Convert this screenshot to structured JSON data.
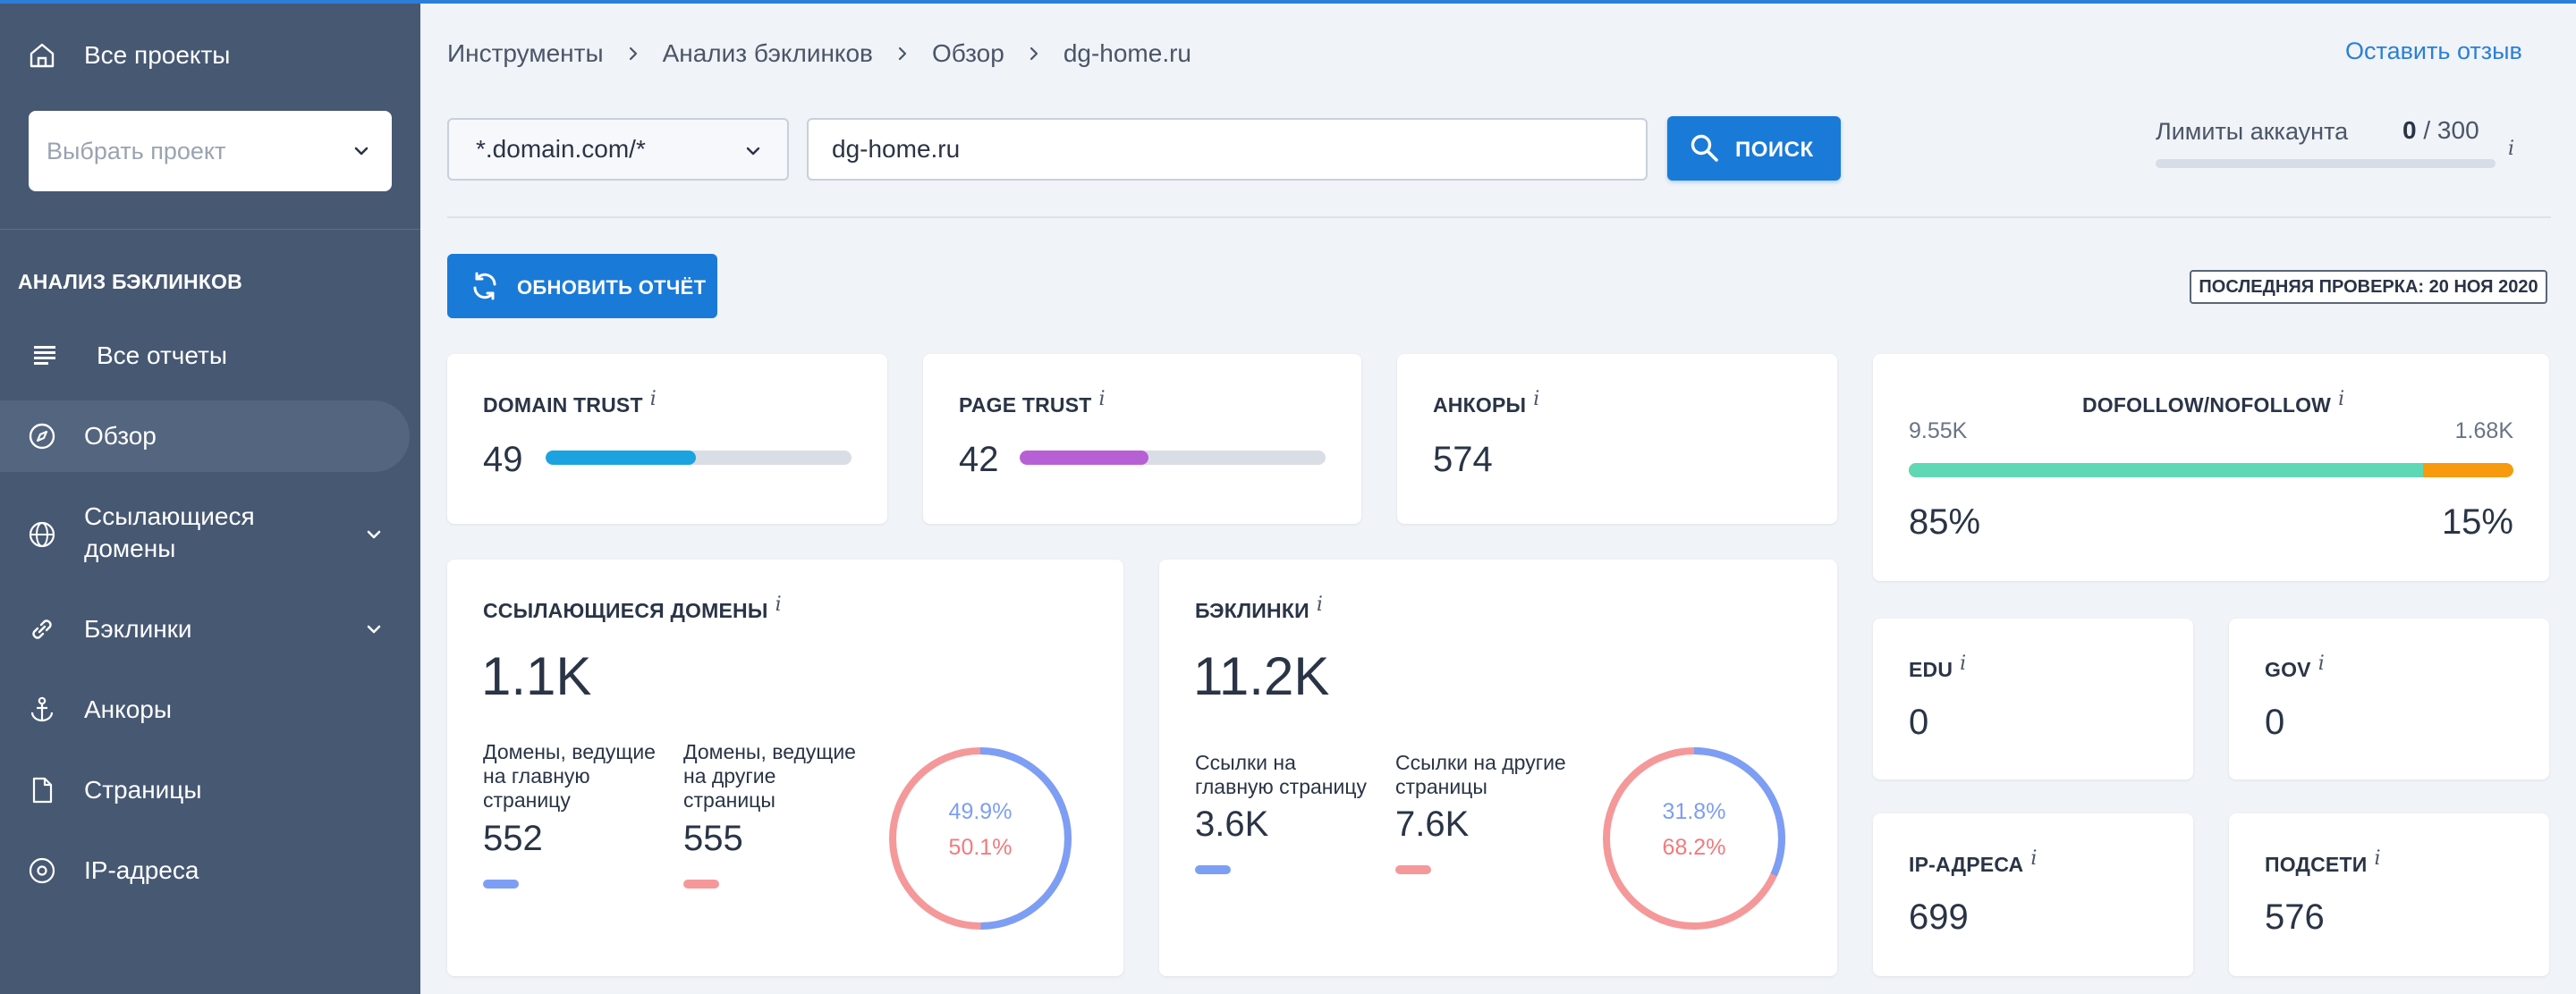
{
  "sidebar": {
    "all_projects": "Все проекты",
    "project_placeholder": "Выбрать проект",
    "section_title": "АНАЛИЗ БЭКЛИНКОВ",
    "all_reports": "Все отчеты",
    "nav": {
      "overview": "Обзор",
      "ref_domains_line1": "Ссылающиеся",
      "ref_domains_line2": "домены",
      "backlinks": "Бэклинки",
      "anchors": "Анкоры",
      "pages": "Страницы",
      "ip": "IP-адреса"
    }
  },
  "breadcrumb": [
    "Инструменты",
    "Анализ бэклинков",
    "Обзор",
    "dg-home.ru"
  ],
  "feedback": "Оставить отзыв",
  "search": {
    "mode": "*.domain.com/*",
    "query": "dg-home.ru",
    "button": "ПОИСК"
  },
  "limits": {
    "label": "Лимиты аккаунта",
    "used": "0",
    "separator": "/",
    "total": "300",
    "fraction": 0
  },
  "refresh_button": "ОБНОВИТЬ ОТЧЁТ",
  "last_check": "ПОСЛЕДНЯЯ ПРОВЕРКА: 20 НОЯ 2020",
  "info_symbol": "i",
  "metrics": {
    "domain_trust": {
      "title": "DOMAIN TRUST",
      "value": "49",
      "fraction": 0.49,
      "color": "#1ba3e0"
    },
    "page_trust": {
      "title": "PAGE TRUST",
      "value": "42",
      "fraction": 0.42,
      "color": "#b760d6"
    },
    "anchors": {
      "title": "АНКОРЫ",
      "value": "574"
    },
    "dofollow": {
      "title": "DOFOLLOW/NOFOLLOW",
      "dofollow_count": "9.55K",
      "nofollow_count": "1.68K",
      "dofollow_pct": "85%",
      "nofollow_pct": "15%",
      "dofollow_fraction": 0.85,
      "dofollow_color": "#5fd8b6",
      "nofollow_color": "#f79a0e"
    },
    "ref_domains": {
      "title": "ССЫЛАЮЩИЕСЯ ДОМЕНЫ",
      "total": "1.1K",
      "main_label": [
        "Домены, ведущие",
        "на главную",
        "страницу"
      ],
      "main_value": "552",
      "other_label": [
        "Домены, ведущие",
        "на другие",
        "страницы"
      ],
      "other_value": "555",
      "main_pct": "49.9%",
      "other_pct": "50.1%",
      "main_fraction": 0.499
    },
    "backlinks": {
      "title": "БЭКЛИНКИ",
      "total": "11.2K",
      "main_label": [
        "Ссылки на",
        "главную страницу"
      ],
      "main_value": "3.6K",
      "other_label": [
        "Ссылки на другие",
        "страницы"
      ],
      "other_value": "7.6K",
      "main_pct": "31.8%",
      "other_pct": "68.2%",
      "main_fraction": 0.318
    },
    "edu": {
      "title": "EDU",
      "value": "0"
    },
    "gov": {
      "title": "GOV",
      "value": "0"
    },
    "ip": {
      "title": "IP-АДРЕСА",
      "value": "699"
    },
    "subnets": {
      "title": "ПОДСЕТИ",
      "value": "576"
    }
  },
  "colors": {
    "main_series": "#7d9ef5",
    "other_series": "#f5989a",
    "accent": "#1a7ad8",
    "sidebar": "#475873"
  }
}
